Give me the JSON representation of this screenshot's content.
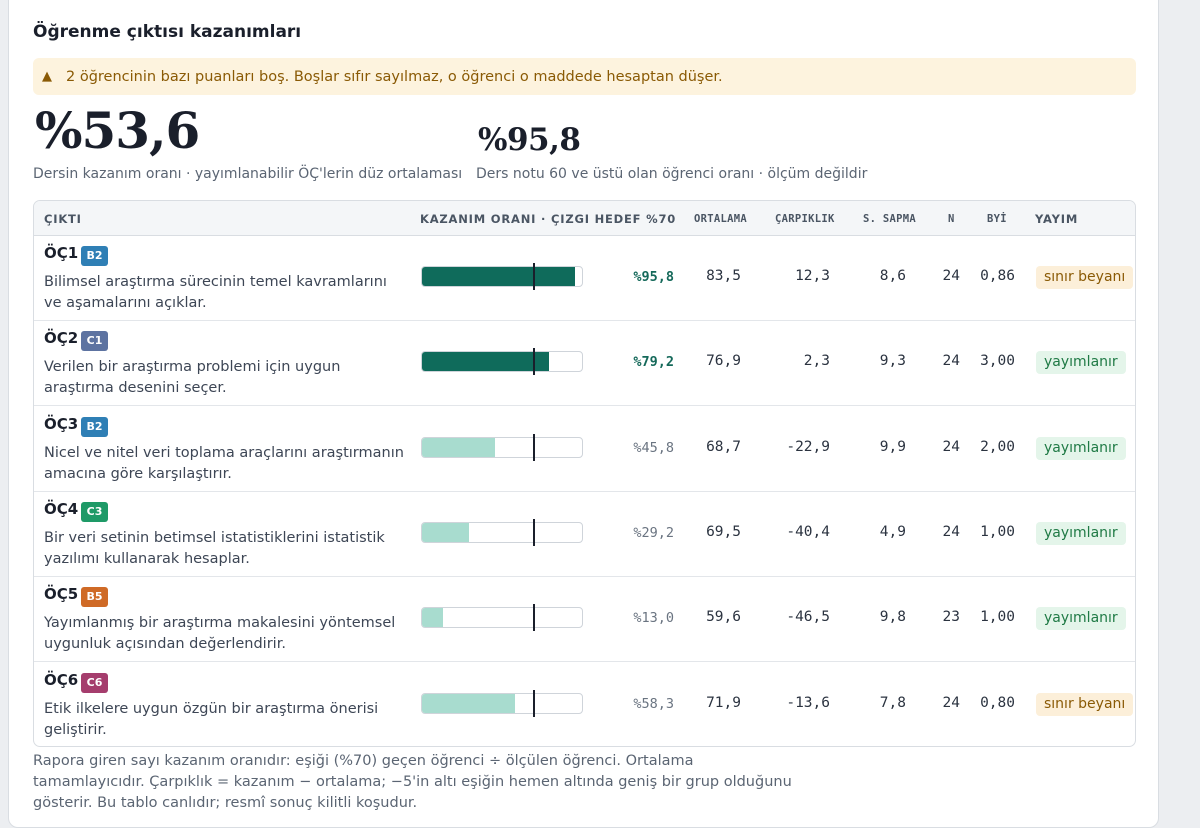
{
  "title": "Öğrenme çıktısı kazanımları",
  "warning": {
    "icon": "warning-triangle-icon",
    "glyph": "▲",
    "text": "2 öğrencinin bazı puanları boş. Boşlar sıfır sayılmaz, o öğrenci o maddede hesaptan düşer."
  },
  "kpis": {
    "course_rate": "%53,6",
    "course_rate_caption": "Dersin kazanım oranı · yayımlanabilir ÖÇ'lerin düz ortalaması",
    "pass_rate": "%95,8",
    "pass_rate_caption": "Ders notu 60 ve üstü olan öğrenci oranı · ölçüm değildir"
  },
  "colors": {
    "pass_fill": "#0f6b5b",
    "fail_fill": "#a8dccf",
    "badge_B2": "#2f7fb5",
    "badge_C1": "#5d73a1",
    "badge_C3": "#1e9a67",
    "badge_B5": "#cf6a26",
    "badge_C6": "#a53d6d"
  },
  "table": {
    "headers": {
      "output": "ÇIKTI",
      "rate": "KAZANIM ORANI · ÇIZGI HEDEF %70",
      "mean": "ORTALAMA",
      "skew": "ÇARPIKLIK",
      "sd": "S. SAPMA",
      "n": "N",
      "byi": "BYİ",
      "status": "YAYIM"
    },
    "target": 70,
    "rows": [
      {
        "code": "ÖÇ1",
        "badge": "B2",
        "badge_color": "#2f7fb5",
        "desc": "Bilimsel araştırma sürecinin temel kavramlarını ve aşamalarını açıklar.",
        "rate": 95.8,
        "rate_label": "%95,8",
        "mean": "83,5",
        "skew": "12,3",
        "sd": "8,6",
        "n": "24",
        "byi": "0,86",
        "status": "sınır beyanı",
        "status_kind": "warn"
      },
      {
        "code": "ÖÇ2",
        "badge": "C1",
        "badge_color": "#5d73a1",
        "desc": "Verilen bir araştırma problemi için uygun araştırma desenini seçer.",
        "rate": 79.2,
        "rate_label": "%79,2",
        "mean": "76,9",
        "skew": "2,3",
        "sd": "9,3",
        "n": "24",
        "byi": "3,00",
        "status": "yayımlanır",
        "status_kind": "ok"
      },
      {
        "code": "ÖÇ3",
        "badge": "B2",
        "badge_color": "#2f7fb5",
        "desc": "Nicel ve nitel veri toplama araçlarını araştırmanın amacına göre karşılaştırır.",
        "rate": 45.8,
        "rate_label": "%45,8",
        "mean": "68,7",
        "skew": "-22,9",
        "sd": "9,9",
        "n": "24",
        "byi": "2,00",
        "status": "yayımlanır",
        "status_kind": "ok"
      },
      {
        "code": "ÖÇ4",
        "badge": "C3",
        "badge_color": "#1e9a67",
        "desc": "Bir veri setinin betimsel istatistiklerini istatistik yazılımı kullanarak hesaplar.",
        "rate": 29.2,
        "rate_label": "%29,2",
        "mean": "69,5",
        "skew": "-40,4",
        "sd": "4,9",
        "n": "24",
        "byi": "1,00",
        "status": "yayımlanır",
        "status_kind": "ok"
      },
      {
        "code": "ÖÇ5",
        "badge": "B5",
        "badge_color": "#cf6a26",
        "desc": "Yayımlanmış bir araştırma makalesini yöntemsel uygunluk açısından değerlendirir.",
        "rate": 13.0,
        "rate_label": "%13,0",
        "mean": "59,6",
        "skew": "-46,5",
        "sd": "9,8",
        "n": "23",
        "byi": "1,00",
        "status": "yayımlanır",
        "status_kind": "ok"
      },
      {
        "code": "ÖÇ6",
        "badge": "C6",
        "badge_color": "#a53d6d",
        "desc": "Etik ilkelere uygun özgün bir araştırma önerisi geliştirir.",
        "rate": 58.3,
        "rate_label": "%58,3",
        "mean": "71,9",
        "skew": "-13,6",
        "sd": "7,8",
        "n": "24",
        "byi": "0,80",
        "status": "sınır beyanı",
        "status_kind": "warn"
      }
    ]
  },
  "footnote": "Rapora giren sayı kazanım oranıdır: eşiği (%70) geçen öğrenci ÷ ölçülen öğrenci. Ortalama tamamlayıcıdır. Çarpıklık = kazanım − ortalama; −5'in altı eşiğin hemen altında geniş bir grup olduğunu gösterir. Bu tablo canlıdır; resmî sonuç kilitli koşudur."
}
